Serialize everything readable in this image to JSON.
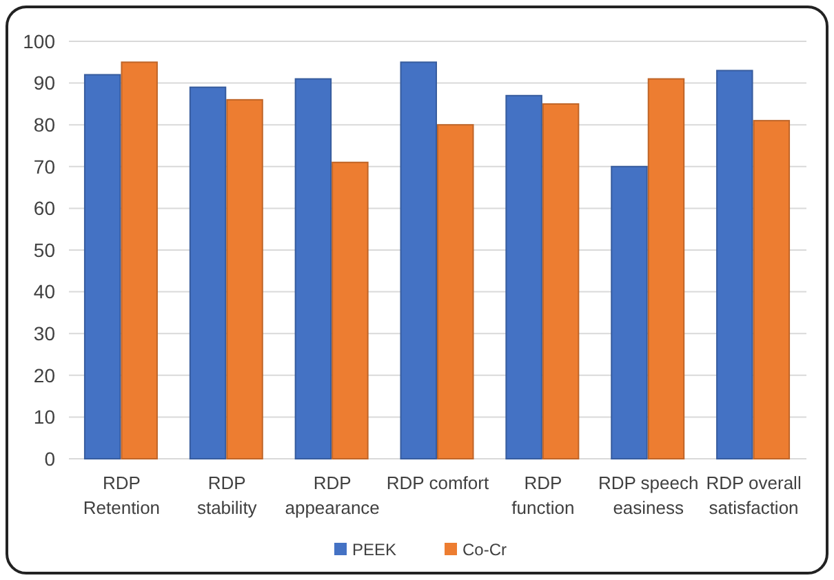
{
  "chart_data": {
    "type": "bar",
    "categories": [
      "RDP Retention",
      "RDP stability",
      "RDP appearance",
      "RDP comfort",
      "RDP function",
      "RDP speech easiness",
      "RDP overall satisfaction"
    ],
    "series": [
      {
        "name": "PEEK",
        "color": "#4472c4",
        "values": [
          92,
          89,
          91,
          95,
          87,
          70,
          93
        ]
      },
      {
        "name": "Co-Cr",
        "color": "#ed7d31",
        "values": [
          95,
          86,
          71,
          80,
          85,
          91,
          81
        ]
      }
    ],
    "ylim": [
      0,
      100
    ],
    "yticks": [
      0,
      10,
      20,
      30,
      40,
      50,
      60,
      70,
      80,
      90,
      100
    ],
    "grid": "y",
    "legend": "bottom"
  }
}
